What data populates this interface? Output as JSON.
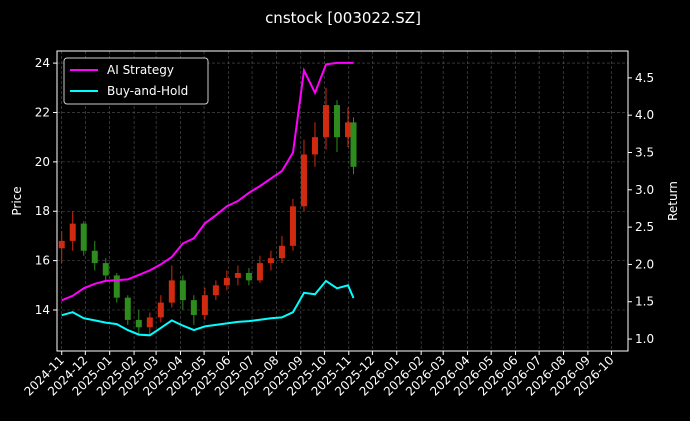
{
  "chart_data": {
    "type": "candlestick",
    "title": "cnstock [003022.SZ]",
    "ylabel": "Price",
    "y2label": "Return",
    "x": [
      "2024-11-01",
      "2024-11-15",
      "2024-11-29",
      "2024-12-13",
      "2024-12-27",
      "2025-01-10",
      "2025-01-24",
      "2025-02-07",
      "2025-02-21",
      "2025-03-07",
      "2025-03-21",
      "2025-04-04",
      "2025-04-18",
      "2025-05-02",
      "2025-05-16",
      "2025-05-30",
      "2025-06-13",
      "2025-06-27",
      "2025-07-11",
      "2025-07-25",
      "2025-08-08",
      "2025-08-22",
      "2025-09-05",
      "2025-09-19",
      "2025-10-03",
      "2025-10-17",
      "2025-10-31",
      "2025-11-07"
    ],
    "open": [
      16.5,
      16.8,
      17.5,
      16.4,
      15.9,
      15.4,
      14.5,
      13.6,
      13.3,
      13.7,
      14.3,
      15.2,
      14.4,
      13.8,
      14.6,
      15.0,
      15.3,
      15.5,
      15.2,
      15.9,
      16.1,
      16.6,
      18.2,
      20.3,
      21.0,
      22.3,
      21.0,
      21.6
    ],
    "high": [
      17.2,
      18.0,
      17.6,
      16.8,
      16.1,
      15.5,
      14.6,
      14.0,
      13.9,
      14.6,
      15.8,
      15.4,
      14.6,
      14.9,
      15.2,
      15.6,
      15.8,
      15.7,
      16.2,
      16.4,
      17.0,
      18.5,
      20.9,
      21.6,
      23.0,
      22.5,
      22.2,
      21.8
    ],
    "low": [
      15.9,
      16.4,
      16.2,
      15.6,
      15.2,
      14.3,
      13.4,
      13.0,
      13.0,
      13.5,
      14.1,
      14.0,
      13.4,
      13.6,
      14.4,
      14.8,
      15.0,
      15.0,
      15.1,
      15.6,
      15.9,
      16.4,
      18.0,
      19.8,
      20.5,
      20.4,
      20.6,
      19.5
    ],
    "close": [
      16.8,
      17.5,
      16.4,
      15.9,
      15.4,
      14.5,
      13.6,
      13.3,
      13.7,
      14.3,
      15.2,
      14.4,
      13.8,
      14.6,
      15.0,
      15.3,
      15.5,
      15.2,
      15.9,
      16.1,
      16.6,
      18.2,
      20.3,
      21.0,
      22.3,
      21.0,
      21.6,
      19.8
    ],
    "up_color": "#d02a10",
    "down_color": "#2e8b1e",
    "series": [
      {
        "name": "AI Strategy",
        "color": "#ff00ff",
        "axis": "y2",
        "values": [
          1.52,
          1.58,
          1.68,
          1.74,
          1.78,
          1.79,
          1.8,
          1.86,
          1.92,
          2.0,
          2.1,
          2.28,
          2.35,
          2.55,
          2.66,
          2.78,
          2.85,
          2.96,
          3.05,
          3.15,
          3.25,
          3.5,
          4.6,
          4.3,
          4.68,
          4.7,
          4.7,
          4.7
        ]
      },
      {
        "name": "Buy-and-Hold",
        "color": "#00ffff",
        "axis": "y2",
        "values": [
          1.32,
          1.36,
          1.28,
          1.25,
          1.22,
          1.2,
          1.12,
          1.06,
          1.05,
          1.15,
          1.25,
          1.18,
          1.12,
          1.17,
          1.19,
          1.21,
          1.23,
          1.24,
          1.26,
          1.28,
          1.29,
          1.36,
          1.62,
          1.6,
          1.78,
          1.68,
          1.72,
          1.55
        ]
      }
    ],
    "xlim": [
      "2024-10-26",
      "2026-10-22"
    ],
    "xticks": [
      {
        "value": "2024-11-01",
        "label": "2024-11"
      },
      {
        "value": "2024-12-01",
        "label": "2024-12"
      },
      {
        "value": "2025-01-01",
        "label": "2025-01"
      },
      {
        "value": "2025-02-01",
        "label": "2025-02"
      },
      {
        "value": "2025-03-01",
        "label": "2025-03"
      },
      {
        "value": "2025-04-01",
        "label": "2025-04"
      },
      {
        "value": "2025-05-01",
        "label": "2025-05"
      },
      {
        "value": "2025-06-01",
        "label": "2025-06"
      },
      {
        "value": "2025-07-01",
        "label": "2025-07"
      },
      {
        "value": "2025-08-01",
        "label": "2025-08"
      },
      {
        "value": "2025-09-01",
        "label": "2025-09"
      },
      {
        "value": "2025-10-01",
        "label": "2025-10"
      },
      {
        "value": "2025-11-01",
        "label": "2025-11"
      },
      {
        "value": "2025-12-01",
        "label": "2025-12"
      },
      {
        "value": "2026-01-01",
        "label": "2026-01"
      },
      {
        "value": "2026-02-01",
        "label": "2026-02"
      },
      {
        "value": "2026-03-01",
        "label": "2026-03"
      },
      {
        "value": "2026-04-01",
        "label": "2026-04"
      },
      {
        "value": "2026-05-01",
        "label": "2026-05"
      },
      {
        "value": "2026-06-01",
        "label": "2026-06"
      },
      {
        "value": "2026-07-01",
        "label": "2026-07"
      },
      {
        "value": "2026-08-01",
        "label": "2026-08"
      },
      {
        "value": "2026-09-01",
        "label": "2026-09"
      },
      {
        "value": "2026-10-01",
        "label": "2026-10"
      }
    ],
    "ylim": [
      12.34,
      24.49
    ],
    "yticks": [
      14,
      16,
      18,
      20,
      22,
      24
    ],
    "y2lim": [
      0.84,
      4.86
    ],
    "y2ticks": [
      {
        "value": 1.0,
        "label": "1.0"
      },
      1.5,
      {
        "value": 2.0,
        "label": "2.0"
      },
      2.5,
      {
        "value": 3.0,
        "label": "3.0"
      },
      3.5,
      {
        "value": 4.0,
        "label": "4.0"
      },
      4.5
    ],
    "grid": true,
    "legend": "upper-left"
  }
}
